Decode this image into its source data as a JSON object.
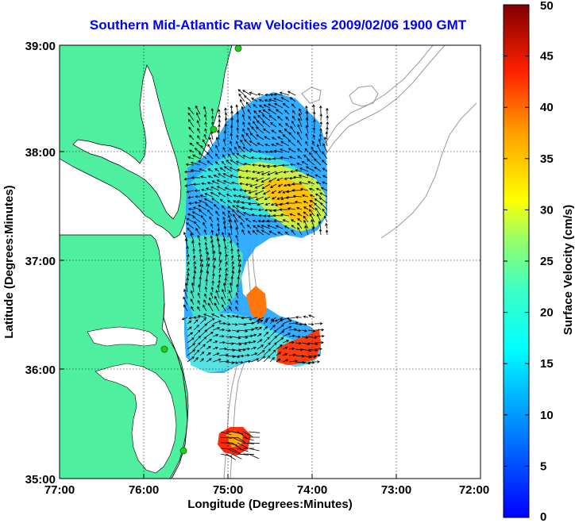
{
  "title": "Southern Mid-Atlantic Raw Velocities 2009/02/06 1900 GMT",
  "xlabel": "Longitude (Degrees:Minutes)",
  "ylabel": "Latitude (Degrees:Minutes)",
  "x_ticks": [
    "77:00",
    "76:00",
    "75:00",
    "74:00",
    "73:00",
    "72:00"
  ],
  "y_ticks": [
    "39:00",
    "38:00",
    "37:00",
    "36:00",
    "35:00"
  ],
  "colorbar": {
    "label": "Surface Velocity (cm/s)",
    "ticks": [
      "0",
      "5",
      "10",
      "15",
      "20",
      "25",
      "30",
      "35",
      "40",
      "45",
      "50"
    ],
    "range": [
      0,
      50
    ],
    "colormap": "jet"
  },
  "colors": {
    "title": "#0000ff",
    "land": "#4ef0a0",
    "coastline": "#000000",
    "bathymetry": "#9a9a9a",
    "station_marker": "#22cc22"
  }
}
